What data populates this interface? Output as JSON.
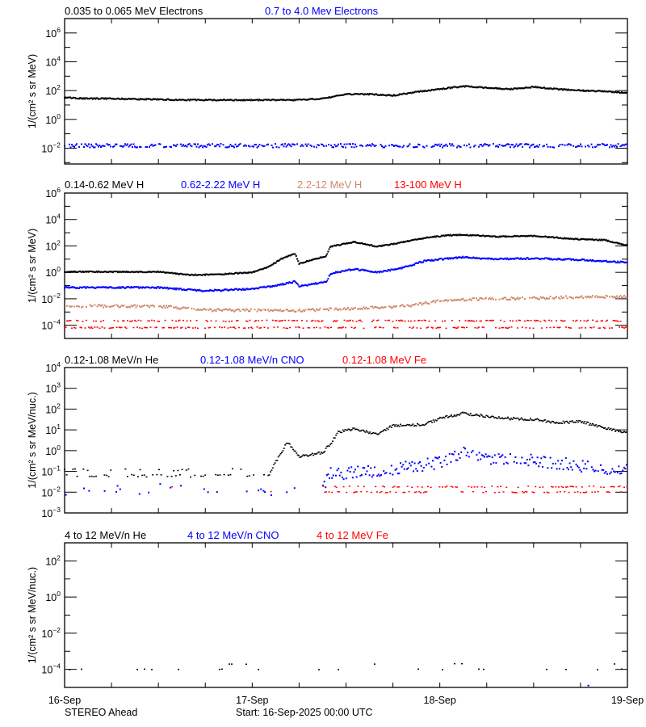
{
  "colors": {
    "black": "#000000",
    "blue": "#0000ff",
    "brown": "#d08a6c",
    "red": "#ff0000"
  },
  "x_axis": {
    "start": "2025-09-16 00:00",
    "end": "2025-09-19 00:00",
    "tick_labels": [
      {
        "time": "2025-09-16 00:00",
        "label": "16-Sep"
      },
      {
        "time": "2025-09-17 00:00",
        "label": "17-Sep"
      },
      {
        "time": "2025-09-18 00:00",
        "label": "18-Sep"
      },
      {
        "time": "2025-09-19 00:00",
        "label": "19-Sep"
      }
    ],
    "minor_tick_interval_hours": 6
  },
  "footer": {
    "spacecraft": "STEREO Ahead",
    "start": "Start: 16-Sep-2025 00:00 UTC"
  },
  "chart_data": [
    {
      "type": "scatter",
      "scale": "log",
      "ylabel": "1/(cm² s sr MeV)",
      "ylim": [
        0.0008,
        10000000
      ],
      "y_tick_labels": [
        {
          "base": "10",
          "exp": "6",
          "value": 1000000.0
        },
        {
          "base": "10",
          "exp": "4",
          "value": 10000.0
        },
        {
          "base": "10",
          "exp": "2",
          "value": 100.0
        },
        {
          "base": "10",
          "exp": "0",
          "value": 1
        },
        {
          "base": "10",
          "exp": "−2",
          "value": 0.01
        }
      ],
      "series": [
        {
          "name": "0.035 to 0.065 MeV Electrons",
          "color": "#000000",
          "points": [
            [
              "2025-09-16 00:00",
              32
            ],
            [
              "2025-09-16 03:00",
              28
            ],
            [
              "2025-09-16 06:00",
              28
            ],
            [
              "2025-09-16 09:00",
              25
            ],
            [
              "2025-09-16 12:00",
              25
            ],
            [
              "2025-09-16 15:00",
              22
            ],
            [
              "2025-09-16 21:00",
              22
            ],
            [
              "2025-09-17 06:00",
              22
            ],
            [
              "2025-09-17 09:00",
              28
            ],
            [
              "2025-09-17 12:00",
              56
            ],
            [
              "2025-09-17 15:00",
              56
            ],
            [
              "2025-09-17 18:00",
              45
            ],
            [
              "2025-09-17 21:00",
              79
            ],
            [
              "2025-09-18 00:00",
              126
            ],
            [
              "2025-09-18 03:00",
              200
            ],
            [
              "2025-09-18 06:00",
              158
            ],
            [
              "2025-09-18 09:00",
              126
            ],
            [
              "2025-09-18 12:00",
              178
            ],
            [
              "2025-09-18 15:00",
              126
            ],
            [
              "2025-09-18 18:00",
              100
            ],
            [
              "2025-09-18 21:00",
              89
            ],
            [
              "2025-09-19 00:00",
              71
            ]
          ]
        },
        {
          "name": "0.7 to 4.0 Mev Electrons",
          "color": "#0000ff",
          "points": [
            [
              "2025-09-16 00:00",
              0.015
            ],
            [
              "2025-09-17 00:00",
              0.015
            ],
            [
              "2025-09-18 00:00",
              0.015
            ],
            [
              "2025-09-19 00:00",
              0.015
            ]
          ]
        }
      ]
    },
    {
      "type": "scatter",
      "scale": "log",
      "ylabel": "1/(cm² s sr MeV)",
      "ylim": [
        1e-05,
        1000000
      ],
      "y_tick_labels": [
        {
          "base": "10",
          "exp": "6",
          "value": 1000000.0
        },
        {
          "base": "10",
          "exp": "4",
          "value": 10000.0
        },
        {
          "base": "10",
          "exp": "2",
          "value": 100.0
        },
        {
          "base": "10",
          "exp": "0",
          "value": 1
        },
        {
          "base": "10",
          "exp": "−2",
          "value": 0.01
        },
        {
          "base": "10",
          "exp": "−4",
          "value": 0.0001
        }
      ],
      "series": [
        {
          "name": "0.14-0.62 MeV H",
          "color": "#000000",
          "points": [
            [
              "2025-09-16 00:00",
              1.1
            ],
            [
              "2025-09-16 12:00",
              1.1
            ],
            [
              "2025-09-16 16:00",
              0.63
            ],
            [
              "2025-09-16 20:00",
              0.71
            ],
            [
              "2025-09-17 00:00",
              1.0
            ],
            [
              "2025-09-17 02:00",
              2.5
            ],
            [
              "2025-09-17 04:00",
              12.6
            ],
            [
              "2025-09-17 05:30",
              25
            ],
            [
              "2025-09-17 06:00",
              4.5
            ],
            [
              "2025-09-17 09:30",
              17.8
            ],
            [
              "2025-09-17 10:00",
              89
            ],
            [
              "2025-09-17 13:00",
              200
            ],
            [
              "2025-09-17 16:00",
              89
            ],
            [
              "2025-09-17 19:00",
              178
            ],
            [
              "2025-09-17 22:00",
              398
            ],
            [
              "2025-09-18 01:00",
              631
            ],
            [
              "2025-09-18 03:00",
              708
            ],
            [
              "2025-09-18 07:00",
              501
            ],
            [
              "2025-09-18 12:00",
              562
            ],
            [
              "2025-09-18 18:00",
              316
            ],
            [
              "2025-09-18 21:00",
              282
            ],
            [
              "2025-09-19 00:00",
              112
            ]
          ]
        },
        {
          "name": "0.62-2.22 MeV H",
          "color": "#0000ff",
          "points": [
            [
              "2025-09-16 00:00",
              0.071
            ],
            [
              "2025-09-16 12:00",
              0.071
            ],
            [
              "2025-09-16 18:00",
              0.04
            ],
            [
              "2025-09-17 00:00",
              0.056
            ],
            [
              "2025-09-17 03:00",
              0.1
            ],
            [
              "2025-09-17 05:30",
              0.2
            ],
            [
              "2025-09-17 06:00",
              0.089
            ],
            [
              "2025-09-17 09:30",
              0.2
            ],
            [
              "2025-09-17 10:00",
              0.79
            ],
            [
              "2025-09-17 13:00",
              1.78
            ],
            [
              "2025-09-17 16:00",
              1.0
            ],
            [
              "2025-09-17 19:00",
              2.0
            ],
            [
              "2025-09-17 22:00",
              7.1
            ],
            [
              "2025-09-18 01:00",
              11.2
            ],
            [
              "2025-09-18 03:00",
              14.1
            ],
            [
              "2025-09-18 07:00",
              10
            ],
            [
              "2025-09-18 12:00",
              11.2
            ],
            [
              "2025-09-18 18:00",
              8.9
            ],
            [
              "2025-09-19 00:00",
              5.6
            ]
          ]
        },
        {
          "name": "2.2-12 MeV H",
          "color": "#d08a6c",
          "points": [
            [
              "2025-09-16 00:00",
              0.0028
            ],
            [
              "2025-09-16 12:00",
              0.0028
            ],
            [
              "2025-09-16 18:00",
              0.0014
            ],
            [
              "2025-09-17 06:00",
              0.0013
            ],
            [
              "2025-09-17 12:00",
              0.0018
            ],
            [
              "2025-09-17 18:00",
              0.0025
            ],
            [
              "2025-09-17 21:00",
              0.0035
            ],
            [
              "2025-09-18 00:00",
              0.0071
            ],
            [
              "2025-09-18 06:00",
              0.01
            ],
            [
              "2025-09-18 12:00",
              0.011
            ],
            [
              "2025-09-18 18:00",
              0.014
            ],
            [
              "2025-09-19 00:00",
              0.014
            ]
          ]
        },
        {
          "name": "13-100 MeV H",
          "color": "#ff0000",
          "points": [
            [
              "2025-09-16 00:00",
              0.00013
            ],
            [
              "2025-09-19 00:00",
              0.00013
            ]
          ]
        }
      ]
    },
    {
      "type": "scatter",
      "scale": "log",
      "ylabel": "1/(cm² s sr MeV/nuc.)",
      "ylim": [
        0.001,
        10000
      ],
      "y_tick_labels": [
        {
          "base": "10",
          "exp": "4",
          "value": 10000.0
        },
        {
          "base": "10",
          "exp": "3",
          "value": 1000.0
        },
        {
          "base": "10",
          "exp": "2",
          "value": 100.0
        },
        {
          "base": "10",
          "exp": "1",
          "value": 10.0
        },
        {
          "base": "10",
          "exp": "0",
          "value": 1
        },
        {
          "base": "10",
          "exp": "−1",
          "value": 0.1
        },
        {
          "base": "10",
          "exp": "−2",
          "value": 0.01
        },
        {
          "base": "10",
          "exp": "−3",
          "value": 0.001
        }
      ],
      "series": [
        {
          "name": "0.12-1.08 MeV/n He",
          "color": "#000000",
          "points": [
            [
              "2025-09-16 00:00",
              0.055
            ],
            [
              "2025-09-17 02:00",
              0.055
            ],
            [
              "2025-09-17 03:00",
              0.27
            ],
            [
              "2025-09-17 04:30",
              2.5
            ],
            [
              "2025-09-17 06:00",
              0.5
            ],
            [
              "2025-09-17 09:00",
              0.8
            ],
            [
              "2025-09-17 10:00",
              2.1
            ],
            [
              "2025-09-17 11:00",
              7.9
            ],
            [
              "2025-09-17 13:00",
              11.2
            ],
            [
              "2025-09-17 16:00",
              6.3
            ],
            [
              "2025-09-17 18:00",
              15.8
            ],
            [
              "2025-09-17 22:00",
              17.8
            ],
            [
              "2025-09-18 00:00",
              35
            ],
            [
              "2025-09-18 03:00",
              63
            ],
            [
              "2025-09-18 06:00",
              45
            ],
            [
              "2025-09-18 09:00",
              35
            ],
            [
              "2025-09-18 12:00",
              32
            ],
            [
              "2025-09-18 15:00",
              22
            ],
            [
              "2025-09-18 18:00",
              25
            ],
            [
              "2025-09-18 21:00",
              12.6
            ],
            [
              "2025-09-19 00:00",
              7.1
            ]
          ]
        },
        {
          "name": "0.12-1.08 MeV/n CNO",
          "color": "#0000ff",
          "points": [
            [
              "2025-09-16 00:00",
              0.014
            ],
            [
              "2025-09-17 09:00",
              0.014
            ],
            [
              "2025-09-17 10:00",
              0.079
            ],
            [
              "2025-09-17 16:00",
              0.11
            ],
            [
              "2025-09-18 00:00",
              0.28
            ],
            [
              "2025-09-18 03:00",
              0.79
            ],
            [
              "2025-09-18 06:00",
              0.4
            ],
            [
              "2025-09-18 12:00",
              0.35
            ],
            [
              "2025-09-18 18:00",
              0.2
            ],
            [
              "2025-09-19 00:00",
              0.13
            ]
          ]
        },
        {
          "name": "0.12-1.08 MeV Fe",
          "color": "#ff0000",
          "points": [
            [
              "2025-09-16 00:00",
              0.012
            ],
            [
              "2025-09-19 00:00",
              0.012
            ]
          ]
        }
      ]
    },
    {
      "type": "scatter",
      "scale": "log",
      "ylabel": "1/(cm² s sr MeV/nuc.)",
      "ylim": [
        1e-05,
        1000
      ],
      "y_tick_labels": [
        {
          "base": "10",
          "exp": "2",
          "value": 100.0
        },
        {
          "base": "10",
          "exp": "0",
          "value": 1
        },
        {
          "base": "10",
          "exp": "−2",
          "value": 0.01
        },
        {
          "base": "10",
          "exp": "−4",
          "value": 0.0001
        }
      ],
      "series": [
        {
          "name": "4 to 12 MeV/n He",
          "color": "#000000",
          "points": [
            [
              "2025-09-16 00:00",
              0.0001
            ],
            [
              "2025-09-19 00:00",
              0.0001
            ]
          ]
        },
        {
          "name": "4 to 12 MeV/n CNO",
          "color": "#0000ff",
          "points": [
            [
              "2025-09-18 19:00",
              1.26e-05
            ]
          ]
        },
        {
          "name": "4 to 12 MeV Fe",
          "color": "#ff0000",
          "points": []
        }
      ]
    }
  ]
}
